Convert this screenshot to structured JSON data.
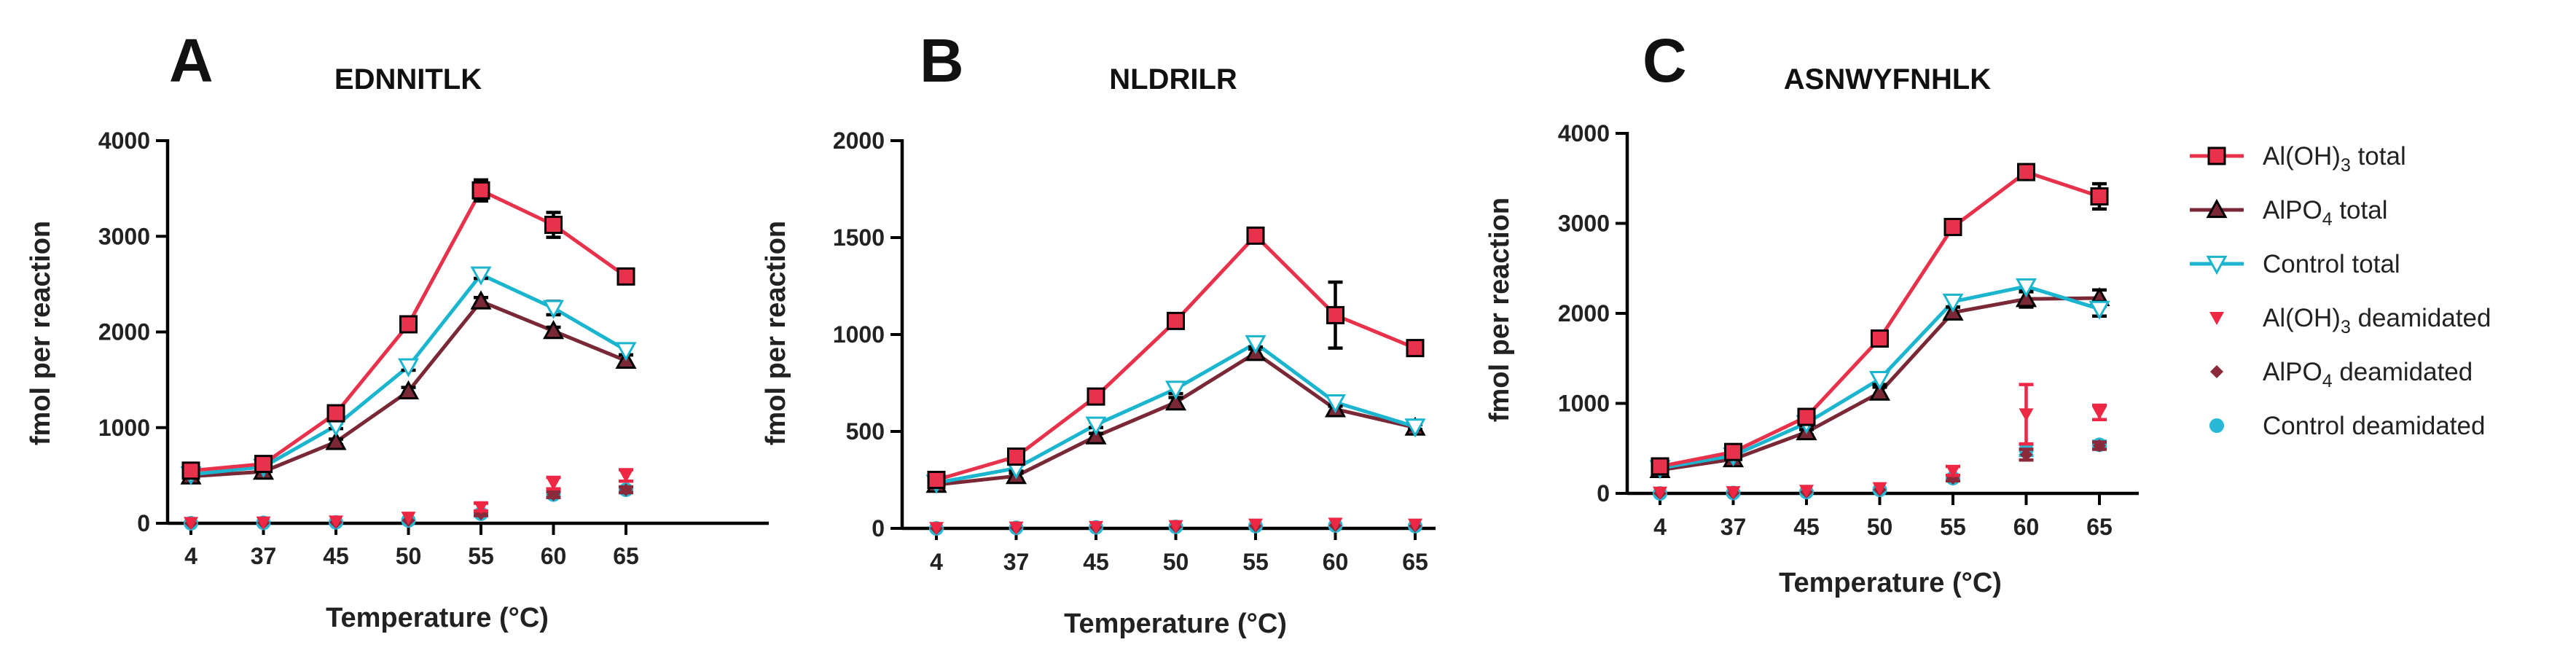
{
  "colors": {
    "aloh_total": "#e8324b",
    "alpo_total": "#7b2836",
    "control_total": "#1bb5cf",
    "aloh_deam": "#ee2744",
    "alpo_deam": "#8a2a3a",
    "control_deam": "#27b9d6"
  },
  "legend": [
    {
      "key": "aloh_total",
      "label_main": "Al(OH)",
      "label_sub": "3",
      "label_tail": " total",
      "marker": "square-line"
    },
    {
      "key": "alpo_total",
      "label_main": "AlPO",
      "label_sub": "4",
      "label_tail": " total",
      "marker": "triangle-up-line"
    },
    {
      "key": "control_total",
      "label_main": "Control total",
      "label_sub": "",
      "label_tail": "",
      "marker": "triangle-down-line"
    },
    {
      "key": "aloh_deam",
      "label_main": "Al(OH)",
      "label_sub": "3",
      "label_tail": " deamidated",
      "marker": "triangle-down"
    },
    {
      "key": "alpo_deam",
      "label_main": "AlPO",
      "label_sub": "4",
      "label_tail": " deamidated",
      "marker": "diamond"
    },
    {
      "key": "control_deam",
      "label_main": "Control deamidated",
      "label_sub": "",
      "label_tail": "",
      "marker": "circle"
    }
  ],
  "chart_data": [
    {
      "type": "line",
      "panel": "A",
      "title": "EDNNITLK",
      "xlabel": "Temperature (°C)",
      "ylabel": "fmol per reaction",
      "categories": [
        "4",
        "37",
        "45",
        "50",
        "55",
        "60",
        "65"
      ],
      "ylim": [
        0,
        4000
      ],
      "yticks": [
        "0",
        "1000",
        "2000",
        "3000",
        "4000"
      ],
      "series": [
        {
          "key": "aloh_total",
          "name": "Al(OH)3 total",
          "values": [
            550,
            620,
            1150,
            2080,
            3480,
            3120,
            2580
          ],
          "errors": [
            40,
            40,
            40,
            50,
            110,
            130,
            60
          ]
        },
        {
          "key": "alpo_total",
          "name": "AlPO4 total",
          "values": [
            490,
            540,
            850,
            1380,
            2320,
            2010,
            1700
          ],
          "errors": [
            30,
            30,
            30,
            40,
            40,
            40,
            60
          ]
        },
        {
          "key": "control_total",
          "name": "Control total",
          "values": [
            510,
            590,
            1020,
            1640,
            2600,
            2250,
            1810
          ],
          "errors": [
            30,
            30,
            30,
            40,
            40,
            70,
            50
          ]
        },
        {
          "key": "aloh_deam",
          "name": "Al(OH)3 deamidated",
          "values": [
            5,
            10,
            20,
            60,
            170,
            420,
            500
          ],
          "errors": [
            0,
            0,
            0,
            0,
            40,
            60,
            60
          ]
        },
        {
          "key": "alpo_deam",
          "name": "AlPO4 deamidated",
          "values": [
            0,
            5,
            10,
            30,
            100,
            300,
            350
          ],
          "errors": [
            0,
            0,
            0,
            0,
            20,
            30,
            30
          ]
        },
        {
          "key": "control_deam",
          "name": "Control deamidated",
          "values": [
            0,
            5,
            10,
            30,
            100,
            300,
            350
          ],
          "errors": [
            0,
            0,
            0,
            0,
            20,
            30,
            30
          ]
        }
      ]
    },
    {
      "type": "line",
      "panel": "B",
      "title": "NLDRILR",
      "xlabel": "Temperature (°C)",
      "ylabel": "fmol per reaction",
      "categories": [
        "4",
        "37",
        "45",
        "50",
        "55",
        "60",
        "65"
      ],
      "ylim": [
        0,
        2000
      ],
      "yticks": [
        "0",
        "500",
        "1000",
        "1500",
        "2000"
      ],
      "series": [
        {
          "key": "aloh_total",
          "name": "Al(OH)3 total",
          "values": [
            250,
            370,
            680,
            1070,
            1510,
            1100,
            930
          ],
          "errors": [
            20,
            30,
            20,
            30,
            25,
            170,
            30
          ]
        },
        {
          "key": "alpo_total",
          "name": "AlPO4 total",
          "values": [
            225,
            270,
            475,
            650,
            905,
            615,
            520
          ],
          "errors": [
            15,
            15,
            15,
            25,
            20,
            20,
            15
          ]
        },
        {
          "key": "control_total",
          "name": "Control total",
          "values": [
            235,
            310,
            535,
            720,
            955,
            650,
            525
          ],
          "errors": [
            15,
            15,
            15,
            25,
            20,
            20,
            15
          ]
        },
        {
          "key": "aloh_deam",
          "name": "Al(OH)3 deamidated",
          "values": [
            3,
            5,
            8,
            12,
            20,
            25,
            20
          ],
          "errors": [
            0,
            0,
            0,
            0,
            0,
            0,
            0
          ]
        },
        {
          "key": "alpo_deam",
          "name": "AlPO4 deamidated",
          "values": [
            0,
            3,
            5,
            8,
            12,
            15,
            12
          ],
          "errors": [
            0,
            0,
            0,
            0,
            0,
            0,
            0
          ]
        },
        {
          "key": "control_deam",
          "name": "Control deamidated",
          "values": [
            0,
            3,
            5,
            8,
            12,
            15,
            12
          ],
          "errors": [
            0,
            0,
            0,
            0,
            0,
            0,
            0
          ]
        }
      ]
    },
    {
      "type": "line",
      "panel": "C",
      "title": "ASNWYFNHLK",
      "xlabel": "Temperature (°C)",
      "ylabel": "fmol per reaction",
      "categories": [
        "4",
        "37",
        "45",
        "50",
        "55",
        "60",
        "65"
      ],
      "ylim": [
        0,
        4000
      ],
      "yticks": [
        "0",
        "1000",
        "2000",
        "3000",
        "4000"
      ],
      "series": [
        {
          "key": "aloh_total",
          "name": "Al(OH)3 total",
          "values": [
            300,
            460,
            850,
            1720,
            2960,
            3570,
            3300
          ],
          "errors": [
            30,
            30,
            40,
            40,
            60,
            40,
            140
          ]
        },
        {
          "key": "alpo_total",
          "name": "AlPO4 total",
          "values": [
            260,
            380,
            680,
            1120,
            2010,
            2160,
            2170
          ],
          "errors": [
            30,
            30,
            30,
            60,
            60,
            90,
            90
          ]
        },
        {
          "key": "control_total",
          "name": "Control total",
          "values": [
            280,
            420,
            780,
            1270,
            2130,
            2300,
            2050
          ],
          "errors": [
            30,
            30,
            30,
            60,
            60,
            60,
            80
          ]
        },
        {
          "key": "aloh_deam",
          "name": "Al(OH)3 deamidated",
          "values": [
            10,
            15,
            30,
            60,
            250,
            880,
            900
          ],
          "errors": [
            0,
            0,
            0,
            0,
            50,
            330,
            80
          ]
        },
        {
          "key": "alpo_deam",
          "name": "AlPO4 deamidated",
          "values": [
            0,
            5,
            15,
            40,
            170,
            430,
            530
          ],
          "errors": [
            0,
            0,
            0,
            0,
            30,
            60,
            40
          ]
        },
        {
          "key": "control_deam",
          "name": "Control deamidated",
          "values": [
            0,
            5,
            15,
            40,
            170,
            480,
            540
          ],
          "errors": [
            0,
            0,
            0,
            0,
            30,
            60,
            40
          ]
        }
      ]
    }
  ]
}
